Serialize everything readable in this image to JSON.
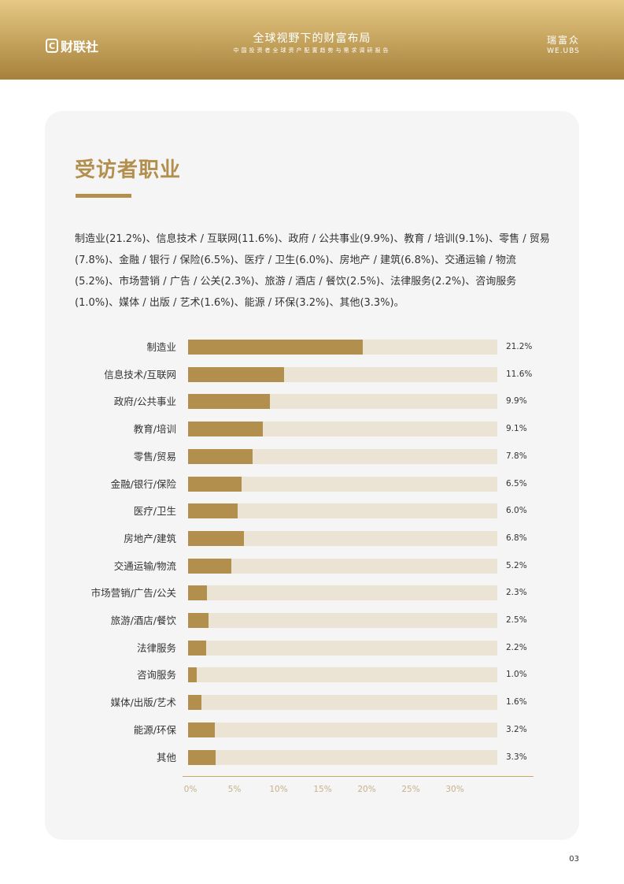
{
  "header": {
    "logo_left_mark": "C",
    "logo_left_text": "财联社",
    "title": "全球视野下的财富布局",
    "subtitle": "中国投资者全球资产配置趋势与需求调研报告",
    "logo_right_cn": "瑞富众",
    "logo_right_en": "WE.UBS"
  },
  "section": {
    "title": "受访者职业",
    "paragraph": "制造业(21.2%)、信息技术 / 互联网(11.6%)、政府 / 公共事业(9.9%)、教育 / 培训(9.1%)、零售 / 贸易(7.8%)、金融 / 银行 / 保险(6.5%)、医疗 / 卫生(6.0%)、房地产 / 建筑(6.8%)、交通运输 / 物流(5.2%)、市场营销 / 广告 / 公关(2.3%)、旅游 / 酒店 / 餐饮(2.5%)、法律服务(2.2%)、咨询服务(1.0%)、媒体 / 出版 / 艺术(1.6%)、能源 / 环保(3.2%)、其他(3.3%)。"
  },
  "chart_data": {
    "type": "bar",
    "orientation": "horizontal",
    "categories": [
      "制造业",
      "信息技术/互联网",
      "政府/公共事业",
      "教育/培训",
      "零售/贸易",
      "金融/银行/保险",
      "医疗/卫生",
      "房地产/建筑",
      "交通运输/物流",
      "市场营销/广告/公关",
      "旅游/酒店/餐饮",
      "法律服务",
      "咨询服务",
      "媒体/出版/艺术",
      "能源/环保",
      "其他"
    ],
    "values": [
      21.2,
      11.6,
      9.9,
      9.1,
      7.8,
      6.5,
      6.0,
      6.8,
      5.2,
      2.3,
      2.5,
      2.2,
      1.0,
      1.6,
      3.2,
      3.3
    ],
    "value_labels": [
      "21.2%",
      "11.6%",
      "9.9%",
      "9.1%",
      "7.8%",
      "6.5%",
      "6.0%",
      "6.8%",
      "5.2%",
      "2.3%",
      "2.5%",
      "2.2%",
      "1.0%",
      "1.6%",
      "3.2%",
      "3.3%"
    ],
    "xticks": [
      "0%",
      "5%",
      "10%",
      "15%",
      "20%",
      "25%",
      "30%"
    ],
    "xtick_values": [
      0,
      5,
      10,
      15,
      20,
      25,
      30
    ],
    "xlim": [
      0,
      37.5
    ],
    "grid": false,
    "legend": "none",
    "colors": {
      "bar": "#b38f4e",
      "track": "#ebe3d3"
    }
  },
  "footer": {
    "page_number": "03"
  },
  "colors": {
    "accent": "#b38f4e",
    "header_gold": "#c9a862"
  }
}
